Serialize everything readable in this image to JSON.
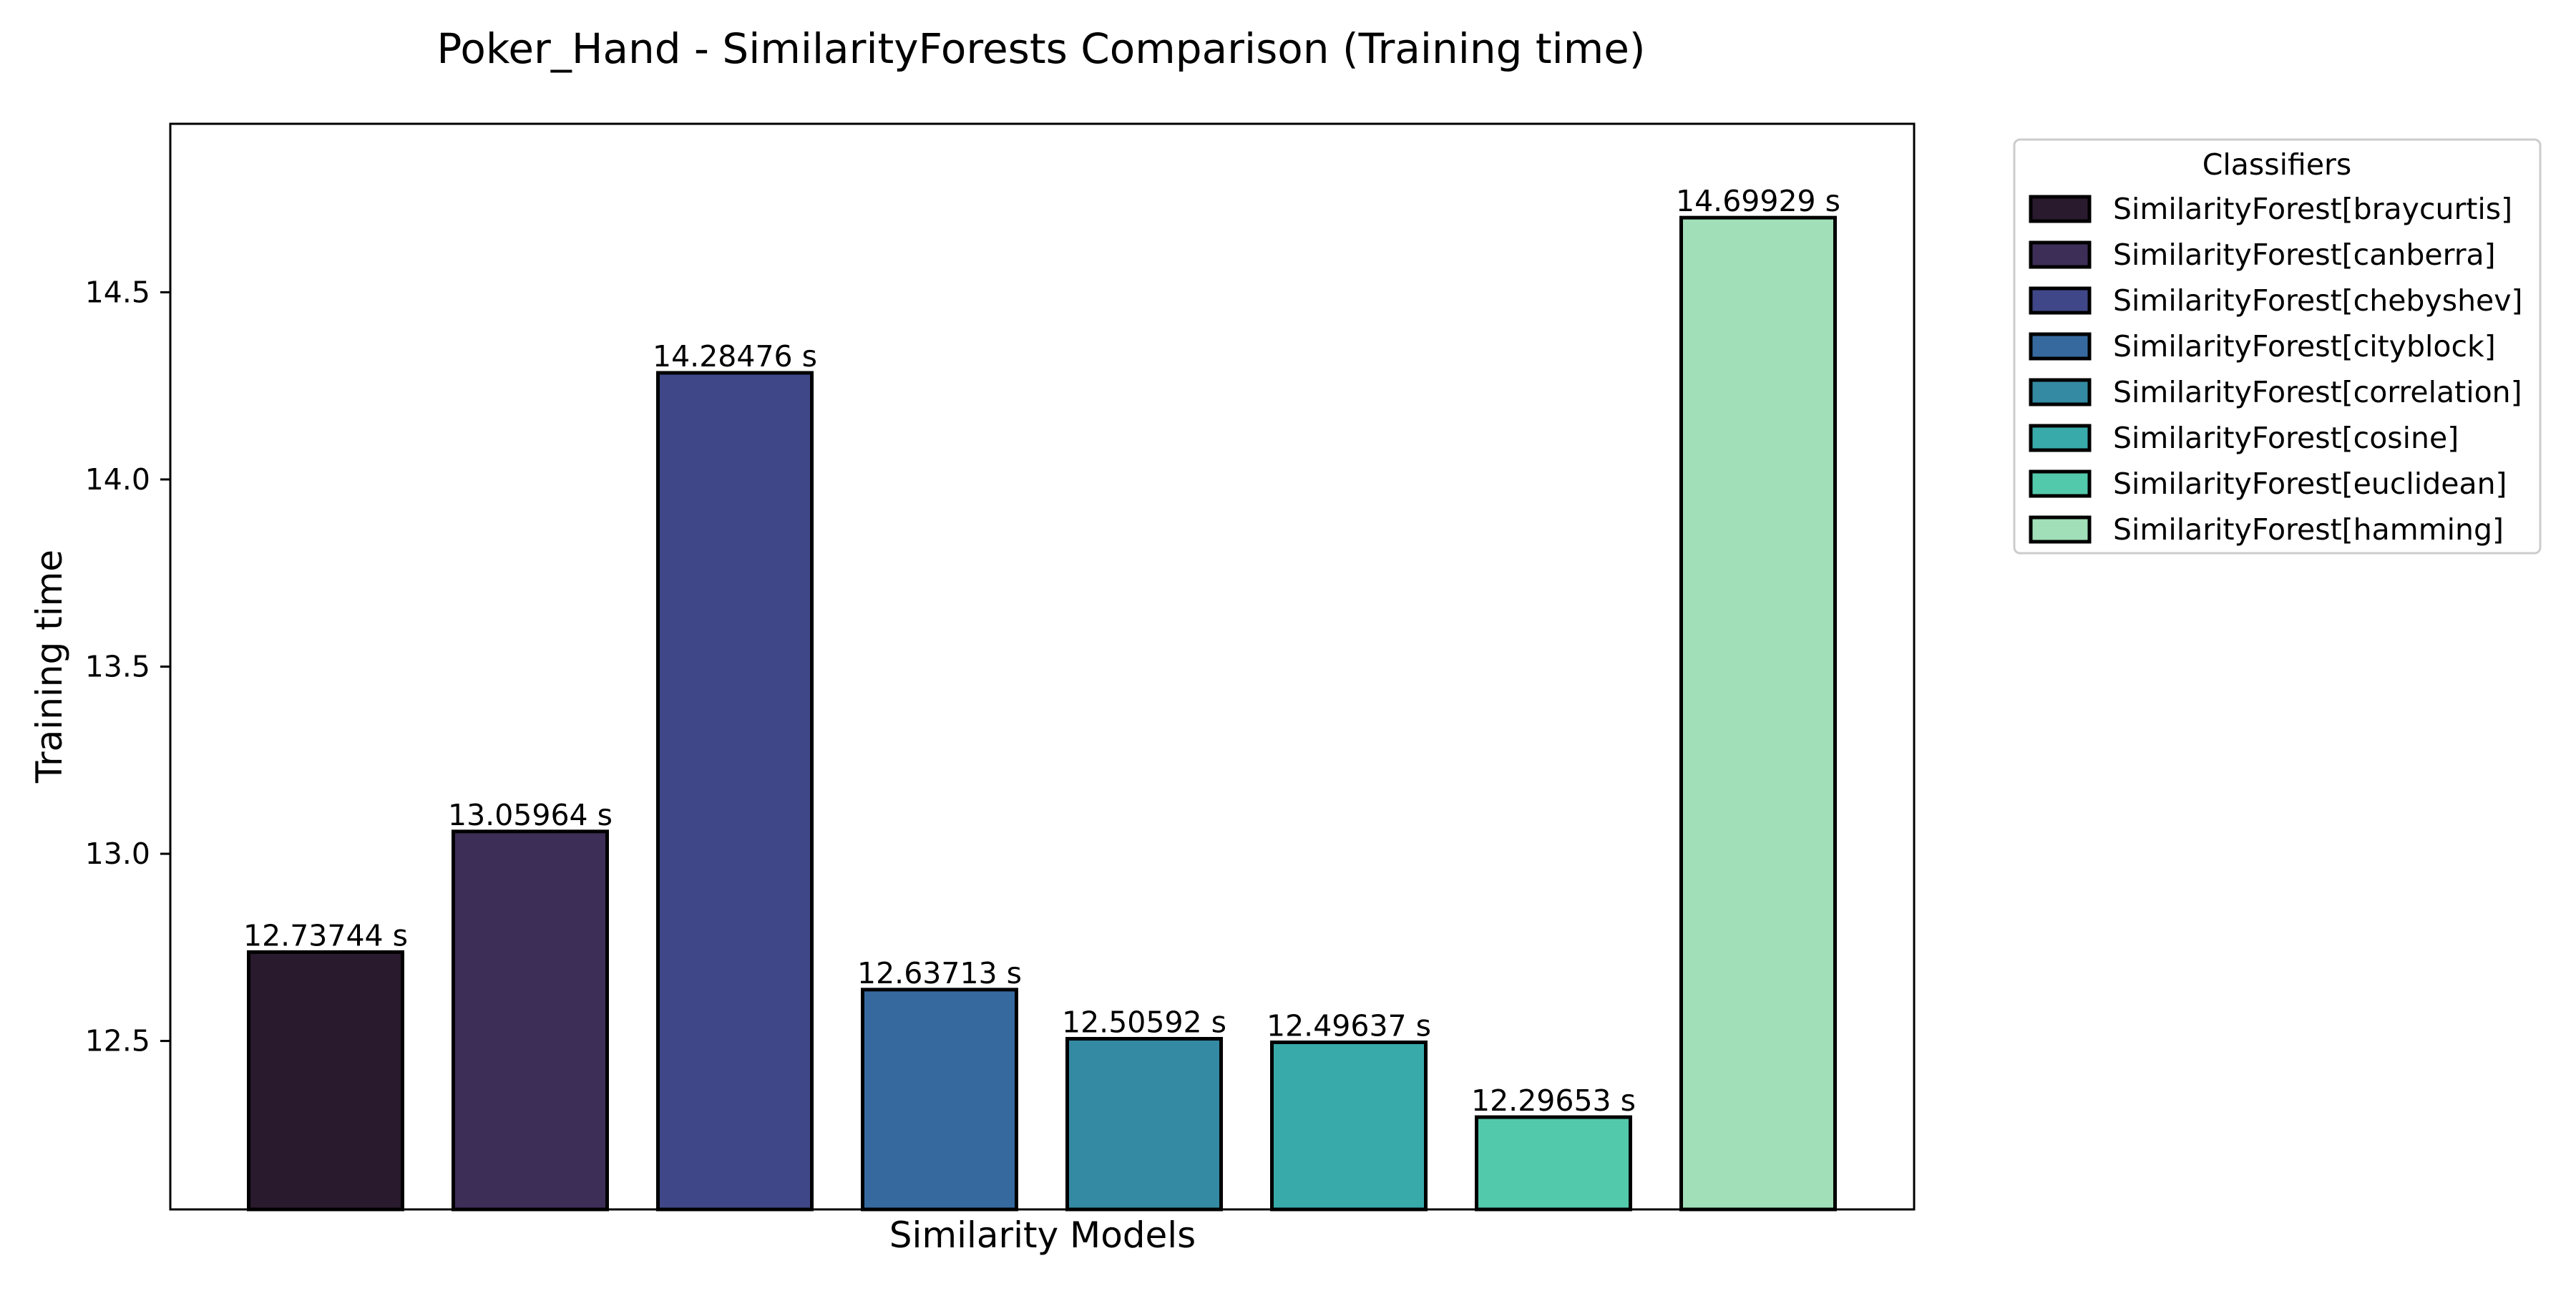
{
  "chart_data": {
    "type": "bar",
    "title": "Poker_Hand - SimilarityForests Comparison (Training time)",
    "xlabel": "Similarity Models",
    "ylabel": "Training time",
    "ylim": [
      12.05,
      14.95
    ],
    "yticks": [
      12.5,
      13.0,
      13.5,
      14.0,
      14.5
    ],
    "ytick_labels": [
      "12.5",
      "13.0",
      "13.5",
      "14.0",
      "14.5"
    ],
    "grid": false,
    "legend": {
      "title": "Classifiers",
      "placement": "outside-upper-right"
    },
    "series": [
      {
        "name": "SimilarityForest[braycurtis]",
        "value": 12.73744,
        "label": "12.73744 s",
        "color": "#2a1a2e"
      },
      {
        "name": "SimilarityForest[canberra]",
        "value": 13.05964,
        "label": "13.05964 s",
        "color": "#3d2e58"
      },
      {
        "name": "SimilarityForest[chebyshev]",
        "value": 14.28476,
        "label": "14.28476 s",
        "color": "#3f4788"
      },
      {
        "name": "SimilarityForest[cityblock]",
        "value": 12.63713,
        "label": "12.63713 s",
        "color": "#366a9f"
      },
      {
        "name": "SimilarityForest[correlation]",
        "value": 12.50592,
        "label": "12.50592 s",
        "color": "#348aa2"
      },
      {
        "name": "SimilarityForest[cosine]",
        "value": 12.49637,
        "label": "12.49637 s",
        "color": "#39aaaa"
      },
      {
        "name": "SimilarityForest[euclidean]",
        "value": 12.29653,
        "label": "12.29653 s",
        "color": "#53c9ab"
      },
      {
        "name": "SimilarityForest[hamming]",
        "value": 14.69929,
        "label": "14.69929 s",
        "color": "#a1dfb8"
      }
    ]
  }
}
